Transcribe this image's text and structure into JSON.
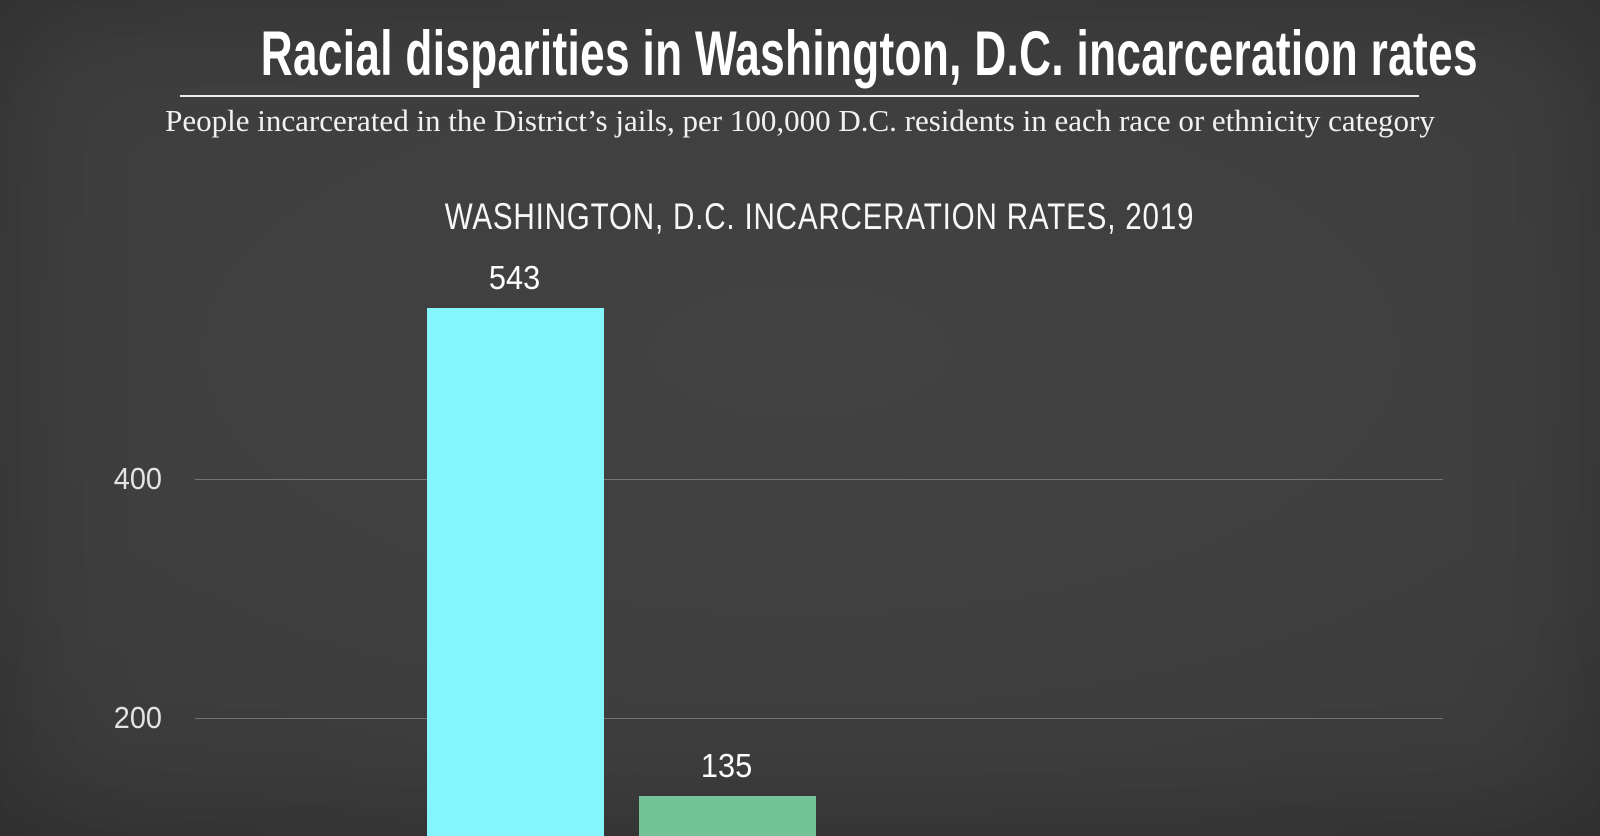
{
  "page": {
    "title": "Racial disparities in Washington, D.C. incarceration rates",
    "subtitle": "People incarcerated in the District’s jails, per 100,000 D.C. residents in each race or ethnicity category"
  },
  "chart_data": {
    "type": "bar",
    "title": "WASHINGTON, D.C. INCARCERATION RATES, 2019",
    "categories": [
      "",
      ""
    ],
    "values": [
      543,
      135
    ],
    "data_labels": [
      "543",
      "135"
    ],
    "bar_colors": [
      "#84f5fb",
      "#74c298"
    ],
    "xlabel": "",
    "ylabel": "",
    "yticks": [
      400,
      200
    ],
    "ytick_labels": [
      "400",
      "200"
    ],
    "grid": true,
    "legend": false,
    "layout_note": "chart is cropped at the bottom edge of the image; x-axis baseline and category labels are not visible"
  },
  "colors": {
    "background_center": "#414141",
    "background_edge": "#2e2e2e",
    "text_primary": "#ffffff",
    "divider": "#ededed",
    "gridline": "rgba(255,255,255,0.28)",
    "tick_label": "#e3e3e3",
    "bar_cyan": "#84f5fb",
    "bar_green": "#74c298"
  }
}
